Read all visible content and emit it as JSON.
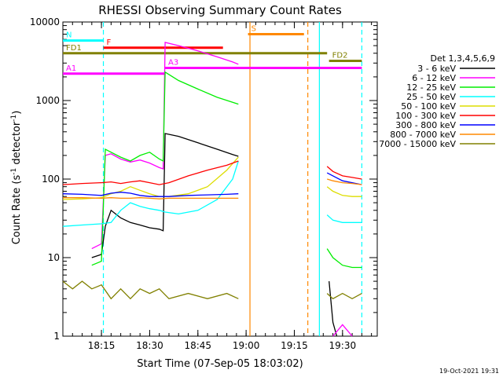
{
  "chart_data": {
    "type": "line",
    "title": "RHESSI Observing Summary Count Rates",
    "xlabel": "Start Time (07-Sep-05 18:03:02)",
    "ylabel_main": "Count Rate (s",
    "ylabel_sup1": "-1",
    "ylabel_mid": " detector",
    "ylabel_sup2": "-1",
    "ylabel_end": ")",
    "timestamp": "19-Oct-2021 19:31",
    "yscale": "log",
    "ylim": [
      1,
      10000
    ],
    "xlim_minutes": [
      18.05,
      19.68
    ],
    "x_ticks": [
      {
        "t": 18.25,
        "label": "18:15"
      },
      {
        "t": 18.5,
        "label": "18:30"
      },
      {
        "t": 18.75,
        "label": "18:45"
      },
      {
        "t": 19.0,
        "label": "19:00"
      },
      {
        "t": 19.25,
        "label": "19:15"
      },
      {
        "t": 19.5,
        "label": "19:30"
      }
    ],
    "y_ticks": [
      {
        "v": 1,
        "label": "1"
      },
      {
        "v": 10,
        "label": "10"
      },
      {
        "v": 100,
        "label": "100"
      },
      {
        "v": 1000,
        "label": "1000"
      },
      {
        "v": 10000,
        "label": "10000"
      }
    ],
    "legend_title": "Det 1,3,4,5,6,9",
    "series": [
      {
        "name": "3 - 6 keV",
        "color": "#000000",
        "segments": [
          [
            [
              18.2,
              10
            ],
            [
              18.25,
              11
            ],
            [
              18.27,
              25
            ],
            [
              18.3,
              40
            ],
            [
              18.35,
              32
            ],
            [
              18.4,
              28
            ],
            [
              18.45,
              26
            ],
            [
              18.5,
              24
            ],
            [
              18.55,
              23
            ],
            [
              18.57,
              22
            ],
            [
              18.58,
              380
            ],
            [
              18.65,
              350
            ],
            [
              18.75,
              290
            ],
            [
              18.85,
              240
            ],
            [
              18.93,
              205
            ],
            [
              18.96,
              195
            ]
          ],
          [
            [
              19.43,
              5
            ],
            [
              19.45,
              1.5
            ],
            [
              19.47,
              1
            ]
          ]
        ]
      },
      {
        "name": "6 - 12 keV",
        "color": "#ff00ff",
        "segments": [
          [
            [
              18.2,
              13
            ],
            [
              18.25,
              15
            ],
            [
              18.27,
              200
            ],
            [
              18.3,
              210
            ],
            [
              18.35,
              180
            ],
            [
              18.4,
              165
            ],
            [
              18.45,
              175
            ],
            [
              18.5,
              160
            ],
            [
              18.55,
              140
            ],
            [
              18.57,
              135
            ],
            [
              18.58,
              5500
            ],
            [
              18.65,
              5000
            ],
            [
              18.75,
              4300
            ],
            [
              18.85,
              3600
            ],
            [
              18.93,
              3100
            ],
            [
              18.96,
              2900
            ]
          ],
          [
            [
              19.45,
              1
            ],
            [
              19.5,
              1.4
            ],
            [
              19.55,
              1
            ]
          ]
        ]
      },
      {
        "name": "12 - 25 keV",
        "color": "#00ee00",
        "segments": [
          [
            [
              18.2,
              8
            ],
            [
              18.25,
              9
            ],
            [
              18.27,
              240
            ],
            [
              18.3,
              220
            ],
            [
              18.35,
              190
            ],
            [
              18.4,
              170
            ],
            [
              18.45,
              200
            ],
            [
              18.5,
              220
            ],
            [
              18.55,
              180
            ],
            [
              18.57,
              170
            ],
            [
              18.58,
              2300
            ],
            [
              18.65,
              1800
            ],
            [
              18.75,
              1400
            ],
            [
              18.85,
              1100
            ],
            [
              18.93,
              950
            ],
            [
              18.96,
              900
            ]
          ],
          [
            [
              19.42,
              13
            ],
            [
              19.45,
              10
            ],
            [
              19.5,
              8
            ],
            [
              19.55,
              7.5
            ],
            [
              19.6,
              7.5
            ]
          ]
        ]
      },
      {
        "name": "25 - 50 keV",
        "color": "#00ffff",
        "segments": [
          [
            [
              18.05,
              25
            ],
            [
              18.15,
              26
            ],
            [
              18.25,
              27
            ],
            [
              18.3,
              28
            ],
            [
              18.35,
              40
            ],
            [
              18.4,
              50
            ],
            [
              18.45,
              45
            ],
            [
              18.5,
              42
            ],
            [
              18.55,
              40
            ],
            [
              18.58,
              38
            ],
            [
              18.65,
              36
            ],
            [
              18.75,
              40
            ],
            [
              18.85,
              55
            ],
            [
              18.93,
              100
            ],
            [
              18.96,
              170
            ]
          ],
          [
            [
              19.42,
              35
            ],
            [
              19.45,
              30
            ],
            [
              19.5,
              28
            ],
            [
              19.55,
              28
            ],
            [
              19.6,
              28
            ]
          ]
        ]
      },
      {
        "name": "50 - 100 keV",
        "color": "#dddd00",
        "segments": [
          [
            [
              18.05,
              55
            ],
            [
              18.15,
              56
            ],
            [
              18.25,
              58
            ],
            [
              18.3,
              65
            ],
            [
              18.35,
              70
            ],
            [
              18.4,
              80
            ],
            [
              18.45,
              72
            ],
            [
              18.5,
              65
            ],
            [
              18.55,
              60
            ],
            [
              18.6,
              60
            ],
            [
              18.7,
              65
            ],
            [
              18.8,
              80
            ],
            [
              18.9,
              130
            ],
            [
              18.96,
              190
            ]
          ],
          [
            [
              19.42,
              80
            ],
            [
              19.45,
              70
            ],
            [
              19.5,
              62
            ],
            [
              19.55,
              60
            ],
            [
              19.6,
              60
            ]
          ]
        ]
      },
      {
        "name": "100 - 300 keV",
        "color": "#ff0000",
        "segments": [
          [
            [
              18.05,
              85
            ],
            [
              18.15,
              88
            ],
            [
              18.25,
              90
            ],
            [
              18.3,
              92
            ],
            [
              18.35,
              88
            ],
            [
              18.4,
              92
            ],
            [
              18.45,
              95
            ],
            [
              18.5,
              90
            ],
            [
              18.55,
              85
            ],
            [
              18.6,
              90
            ],
            [
              18.7,
              110
            ],
            [
              18.8,
              130
            ],
            [
              18.9,
              150
            ],
            [
              18.96,
              170
            ]
          ],
          [
            [
              19.42,
              145
            ],
            [
              19.45,
              125
            ],
            [
              19.5,
              110
            ],
            [
              19.55,
              105
            ],
            [
              19.6,
              100
            ]
          ]
        ]
      },
      {
        "name": "300 - 800 keV",
        "color": "#0000ff",
        "segments": [
          [
            [
              18.05,
              65
            ],
            [
              18.15,
              64
            ],
            [
              18.25,
              62
            ],
            [
              18.3,
              66
            ],
            [
              18.35,
              68
            ],
            [
              18.4,
              66
            ],
            [
              18.45,
              62
            ],
            [
              18.5,
              60
            ],
            [
              18.55,
              60
            ],
            [
              18.6,
              60
            ],
            [
              18.7,
              62
            ],
            [
              18.8,
              63
            ],
            [
              18.9,
              64
            ],
            [
              18.96,
              65
            ]
          ],
          [
            [
              19.42,
              120
            ],
            [
              19.45,
              110
            ],
            [
              19.5,
              95
            ],
            [
              19.55,
              90
            ],
            [
              19.6,
              85
            ]
          ]
        ]
      },
      {
        "name": "800 - 7000 keV",
        "color": "#ff8800",
        "segments": [
          [
            [
              18.05,
              58
            ],
            [
              18.15,
              58
            ],
            [
              18.25,
              57
            ],
            [
              18.3,
              58
            ],
            [
              18.35,
              57
            ],
            [
              18.4,
              57
            ],
            [
              18.45,
              58
            ],
            [
              18.5,
              57
            ],
            [
              18.55,
              56
            ],
            [
              18.6,
              57
            ],
            [
              18.7,
              57
            ],
            [
              18.8,
              57
            ],
            [
              18.9,
              57
            ],
            [
              18.96,
              57
            ]
          ],
          [
            [
              19.42,
              100
            ],
            [
              19.45,
              95
            ],
            [
              19.5,
              90
            ],
            [
              19.55,
              88
            ],
            [
              19.6,
              85
            ]
          ]
        ]
      },
      {
        "name": "7000 - 15000 keV",
        "color": "#808000",
        "segments": [
          [
            [
              18.05,
              5
            ],
            [
              18.1,
              4
            ],
            [
              18.15,
              5
            ],
            [
              18.2,
              4
            ],
            [
              18.25,
              4.5
            ],
            [
              18.3,
              3
            ],
            [
              18.35,
              4
            ],
            [
              18.4,
              3
            ],
            [
              18.45,
              4
            ],
            [
              18.5,
              3.5
            ],
            [
              18.55,
              4
            ],
            [
              18.6,
              3
            ],
            [
              18.7,
              3.5
            ],
            [
              18.8,
              3
            ],
            [
              18.9,
              3.5
            ],
            [
              18.96,
              3
            ]
          ],
          [
            [
              19.42,
              3.5
            ],
            [
              19.45,
              3
            ],
            [
              19.5,
              3.5
            ],
            [
              19.55,
              3
            ],
            [
              19.6,
              3.5
            ]
          ]
        ]
      }
    ],
    "annotations": [
      {
        "label": "N",
        "color": "#00ffff",
        "x0": 18.05,
        "x1": 18.26,
        "y": 5800
      },
      {
        "label": "F",
        "color": "#ff0000",
        "x0": 18.26,
        "x1": 18.88,
        "y": 4700
      },
      {
        "label": "S",
        "color": "#ff8800",
        "x0": 19.01,
        "x1": 19.3,
        "y": 7000
      },
      {
        "label": "A1",
        "color": "#ff00ff",
        "x0": 18.05,
        "x1": 18.58,
        "y": 2200
      },
      {
        "label": "A3",
        "color": "#ff00ff",
        "x0": 18.58,
        "x1": 19.6,
        "y": 2600
      },
      {
        "label": "FD1",
        "color": "#808000",
        "x0": 18.05,
        "x1": 19.42,
        "y": 4000
      },
      {
        "label": "FD2",
        "color": "#808000",
        "x0": 19.43,
        "x1": 19.6,
        "y": 3200
      }
    ],
    "vlines": [
      {
        "t": 18.26,
        "color": "#00ffff",
        "style": "dashed"
      },
      {
        "t": 19.02,
        "color": "#ff8800",
        "style": "solid"
      },
      {
        "t": 19.32,
        "color": "#ff8800",
        "style": "dashed"
      },
      {
        "t": 19.38,
        "color": "#00ffff",
        "style": "solid"
      },
      {
        "t": 19.6,
        "color": "#00ffff",
        "style": "dashed"
      }
    ]
  }
}
